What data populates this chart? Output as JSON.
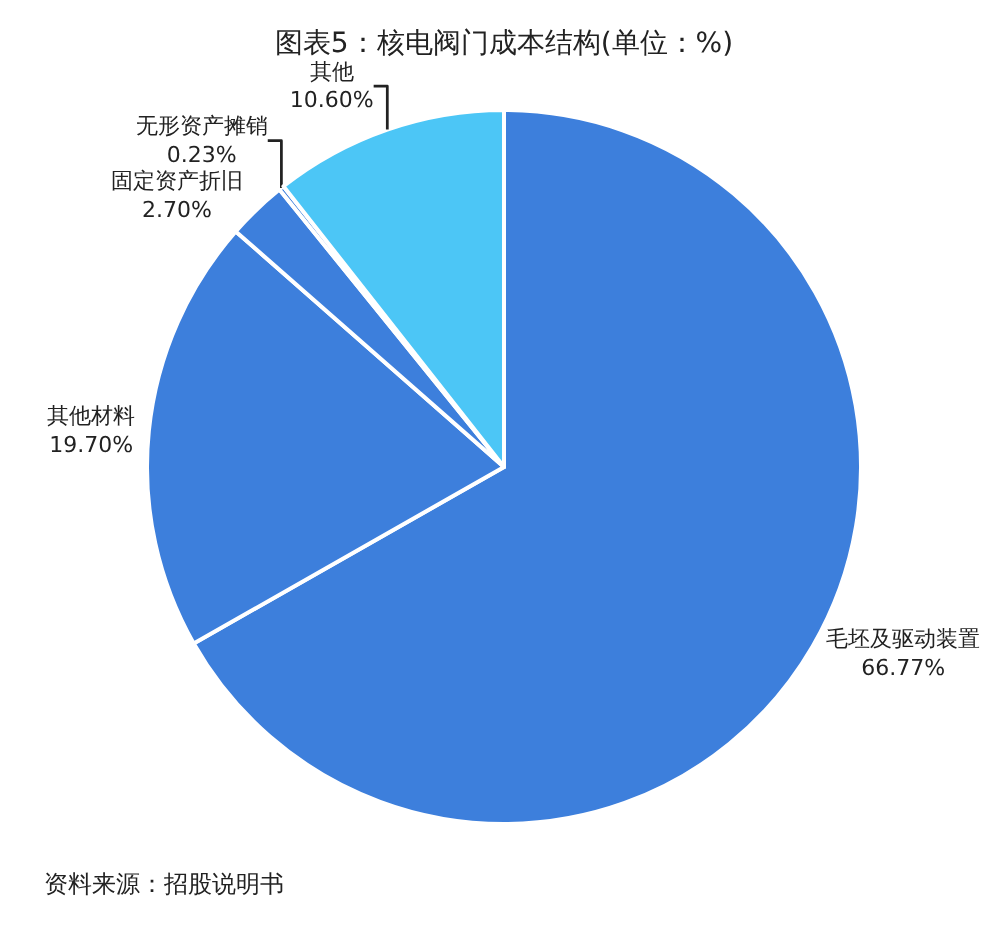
{
  "chart_data": {
    "type": "pie",
    "title": "图表5：核电阀门成本结构(单位：%)",
    "categories": [
      "毛坯及驱动装置",
      "其他材料",
      "固定资产折旧",
      "无形资产摊销",
      "其他"
    ],
    "values": [
      66.77,
      19.7,
      2.7,
      0.23,
      10.6
    ],
    "value_labels": [
      "66.77%",
      "19.70%",
      "2.70%",
      "0.23%",
      "10.60%"
    ],
    "colors": [
      "#3d7fdc",
      "#3d7fdc",
      "#3d7fdc",
      "#3d7fdc",
      "#4cc6f6"
    ],
    "legend": false,
    "annotations": [
      "资料来源：招股说明书"
    ]
  }
}
